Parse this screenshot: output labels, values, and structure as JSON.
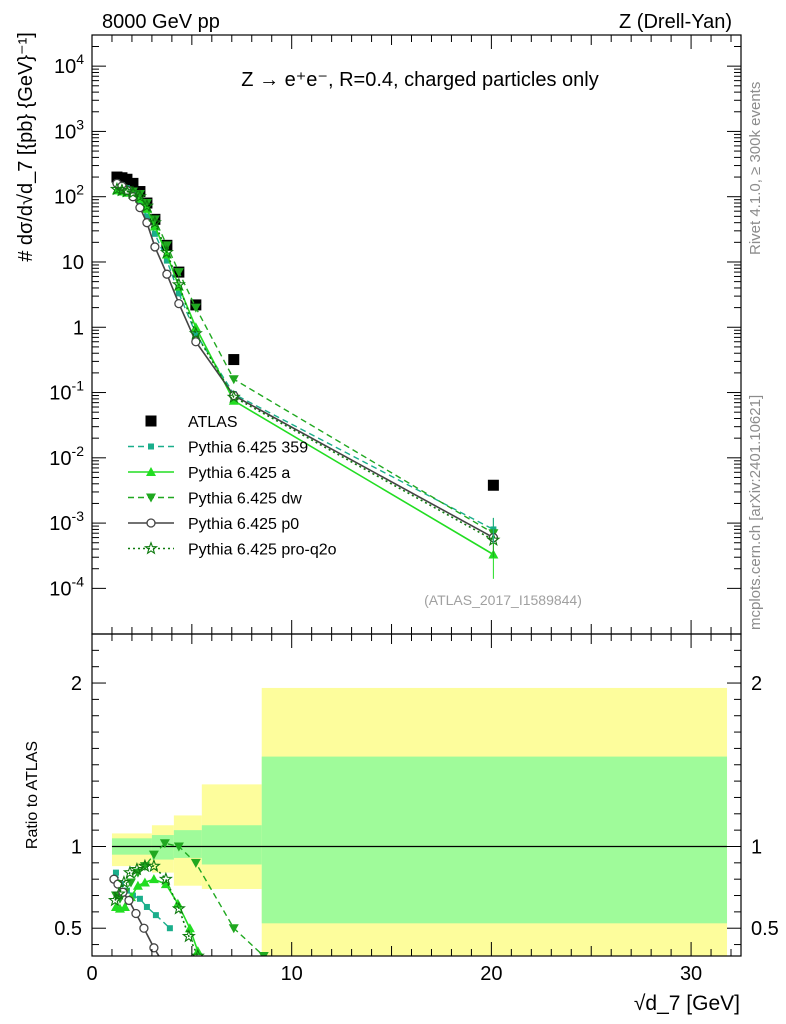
{
  "header": {
    "left": "8000 GeV pp",
    "right": "Z (Drell-Yan)",
    "subtitle": "Z → e⁺e⁻, R=0.4, charged particles only"
  },
  "side": {
    "rivet": "Rivet 4.1.0, ≥ 300k events",
    "mcplots": "mcplots.cern.ch [arXiv:2401.10621]"
  },
  "analysis_id": "(ATLAS_2017_I1589844)",
  "axes": {
    "ylabel_top": "# dσ/d√d_7 [{pb} {GeV}⁻¹]",
    "ylabel_bottom": "Ratio to ATLAS",
    "xlabel": "√d_7 [GeV]"
  },
  "colors": {
    "data": "#000000",
    "p359": "#1aae8b",
    "pa": "#22dd22",
    "pdw": "#20a820",
    "pp0": "#444444",
    "pq2o": "#0e7a0e",
    "band_inner": "#9ffb9a",
    "band_outer": "#fdfd9c"
  },
  "chart_data": [
    {
      "type": "line",
      "yscale": "log",
      "xlim": [
        0,
        32.5
      ],
      "ylim": [
        2e-05,
        30000
      ],
      "xticks": [
        0,
        10,
        20,
        30
      ],
      "yticks": [
        {
          "v": 0.0001,
          "base": "10",
          "exp": "-4"
        },
        {
          "v": 0.001,
          "base": "10",
          "exp": "-3"
        },
        {
          "v": 0.01,
          "base": "10",
          "exp": "-2"
        },
        {
          "v": 0.1,
          "base": "10",
          "exp": "-1"
        },
        {
          "v": 1,
          "base": "1",
          "exp": ""
        },
        {
          "v": 10,
          "base": "10",
          "exp": ""
        },
        {
          "v": 100,
          "base": "10",
          "exp": "2"
        },
        {
          "v": 1000,
          "base": "10",
          "exp": "3"
        },
        {
          "v": 10000,
          "base": "10",
          "exp": "4"
        }
      ],
      "x": [
        1.25,
        1.5,
        1.75,
        2.05,
        2.4,
        2.75,
        3.15,
        3.75,
        4.35,
        5.2,
        7.1,
        20.1
      ],
      "series": [
        {
          "key": "data",
          "name": "ATLAS",
          "values": [
            200,
            195,
            185,
            160,
            120,
            80,
            45,
            18,
            7,
            2.2,
            0.32,
            0.0038
          ]
        },
        {
          "key": "p359",
          "name": "Pythia 6.425 359",
          "values": [
            165,
            150,
            135,
            115,
            82,
            50,
            27,
            10.5,
            3.3,
            0.8,
            0.095,
            0.0008
          ]
        },
        {
          "key": "pa",
          "name": "Pythia 6.425 a",
          "values": [
            125,
            120,
            115,
            108,
            93,
            65,
            35,
            13,
            4.2,
            1.0,
            0.075,
            0.00033
          ]
        },
        {
          "key": "pdw",
          "name": "Pythia 6.425 dw",
          "values": [
            140,
            130,
            125,
            120,
            110,
            80,
            45,
            18,
            7,
            2.0,
            0.16,
            0.0007
          ]
        },
        {
          "key": "pp0",
          "name": "Pythia 6.425 p0",
          "values": [
            160,
            145,
            125,
            100,
            68,
            40,
            17,
            6.5,
            2.3,
            0.6,
            0.09,
            0.0006
          ]
        },
        {
          "key": "pq2o",
          "name": "Pythia 6.425 pro-q2o",
          "values": [
            130,
            125,
            120,
            115,
            100,
            72,
            40,
            14,
            4.5,
            0.8,
            0.085,
            0.00055
          ]
        }
      ]
    },
    {
      "type": "line",
      "ylabel": "Ratio to ATLAS",
      "xlim": [
        0,
        32.5
      ],
      "ylim": [
        0.33,
        2.3
      ],
      "yticks": [
        0.5,
        1,
        2
      ],
      "ytick_labels": [
        "0.5",
        "1",
        "2"
      ],
      "band_inner": [
        {
          "x0": 1.0,
          "x1": 3.0,
          "lo": 0.95,
          "hi": 1.05
        },
        {
          "x0": 3.0,
          "x1": 4.1,
          "lo": 0.92,
          "hi": 1.07
        },
        {
          "x0": 4.1,
          "x1": 5.5,
          "lo": 0.93,
          "hi": 1.1
        },
        {
          "x0": 5.5,
          "x1": 8.5,
          "lo": 0.89,
          "hi": 1.13
        },
        {
          "x0": 8.5,
          "x1": 31.8,
          "lo": 0.53,
          "hi": 1.55
        }
      ],
      "band_outer": [
        {
          "x0": 1.0,
          "x1": 3.0,
          "lo": 0.88,
          "hi": 1.08
        },
        {
          "x0": 3.0,
          "x1": 4.1,
          "lo": 0.84,
          "hi": 1.13
        },
        {
          "x0": 4.1,
          "x1": 5.5,
          "lo": 0.76,
          "hi": 1.19
        },
        {
          "x0": 5.5,
          "x1": 8.5,
          "lo": 0.74,
          "hi": 1.38
        },
        {
          "x0": 8.5,
          "x1": 31.8,
          "lo": 0.3,
          "hi": 1.97
        }
      ],
      "series": [
        {
          "key": "p359",
          "x": [
            1.2,
            1.45,
            1.75,
            2.05,
            2.4,
            2.75,
            3.2,
            3.9
          ],
          "values": [
            0.84,
            0.77,
            0.73,
            0.7,
            0.68,
            0.63,
            0.58,
            0.5
          ]
        },
        {
          "key": "pa",
          "x": [
            1.2,
            1.4,
            1.65,
            1.95,
            2.3,
            2.65,
            3.1,
            3.7,
            4.3,
            4.9,
            5.3
          ],
          "values": [
            0.63,
            0.62,
            0.63,
            0.69,
            0.76,
            0.78,
            0.8,
            0.77,
            0.65,
            0.5,
            0.36
          ]
        },
        {
          "key": "pdw",
          "x": [
            1.2,
            1.4,
            1.65,
            1.95,
            2.3,
            2.65,
            3.1,
            3.65,
            4.35,
            5.2,
            7.1,
            8.6
          ],
          "values": [
            0.7,
            0.68,
            0.72,
            0.78,
            0.84,
            0.88,
            0.95,
            1.02,
            1.0,
            0.9,
            0.5,
            0.33
          ]
        },
        {
          "key": "pp0",
          "x": [
            1.1,
            1.3,
            1.55,
            1.85,
            2.2,
            2.6,
            3.1,
            3.5
          ],
          "values": [
            0.8,
            0.77,
            0.72,
            0.67,
            0.59,
            0.5,
            0.38,
            0.3
          ]
        },
        {
          "key": "pq2o",
          "x": [
            1.15,
            1.35,
            1.6,
            1.9,
            2.25,
            2.65,
            3.1,
            3.7,
            4.35,
            4.85,
            5.3
          ],
          "values": [
            0.67,
            0.71,
            0.78,
            0.84,
            0.86,
            0.88,
            0.88,
            0.8,
            0.62,
            0.45,
            0.33
          ]
        }
      ]
    }
  ]
}
